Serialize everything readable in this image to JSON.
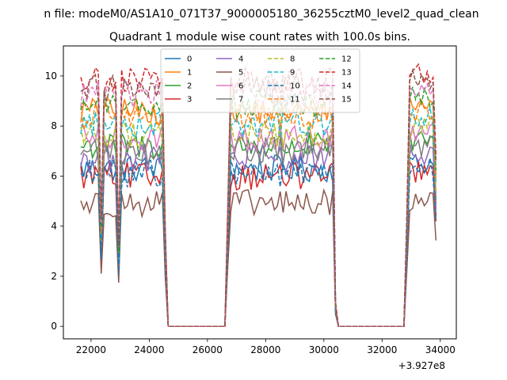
{
  "chart_data": {
    "type": "line",
    "suptitle": "n file: modeM0/AS1A10_071T37_9000005180_36255cztM0_level2_quad_clean",
    "title": "Quadrant 1 module wise count rates with 100.0s bins.",
    "xlabel": "",
    "ylabel": "",
    "x_offset_label": "+3.927e8",
    "xlim": [
      21050,
      34550
    ],
    "ylim": [
      -0.5,
      11.2
    ],
    "xticks": [
      22000,
      24000,
      26000,
      28000,
      30000,
      32000,
      34000
    ],
    "xtick_labels": [
      "22000",
      "24000",
      "26000",
      "28000",
      "30000",
      "32000",
      "34000"
    ],
    "yticks": [
      0,
      2,
      4,
      6,
      8,
      10
    ],
    "ytick_labels": [
      "0",
      "2",
      "4",
      "6",
      "8",
      "10"
    ],
    "legend_position": "top-center",
    "legend_ncol": 4,
    "grid": false,
    "segment1": {
      "start": 21650,
      "end": 24500
    },
    "segment2": {
      "start": 26700,
      "end": 30350
    },
    "segment3": {
      "start": 32850,
      "end": 33900
    },
    "series": [
      {
        "name": "0",
        "color": "#1f77b4",
        "dash": "solid",
        "level": 6.3
      },
      {
        "name": "1",
        "color": "#ff7f0e",
        "dash": "solid",
        "level": 8.6
      },
      {
        "name": "2",
        "color": "#2ca02c",
        "dash": "solid",
        "level": 7.2
      },
      {
        "name": "3",
        "color": "#d62728",
        "dash": "solid",
        "level": 6.0
      },
      {
        "name": "4",
        "color": "#9467bd",
        "dash": "solid",
        "level": 6.7
      },
      {
        "name": "5",
        "color": "#8c564b",
        "dash": "solid",
        "level": 4.9
      },
      {
        "name": "6",
        "color": "#e377c2",
        "dash": "solid",
        "level": 7.5
      },
      {
        "name": "7",
        "color": "#7f7f7f",
        "dash": "solid",
        "level": 7.0
      },
      {
        "name": "8",
        "color": "#bcbd22",
        "dash": "dashed",
        "level": 7.7
      },
      {
        "name": "9",
        "color": "#17becf",
        "dash": "dashed",
        "level": 8.1
      },
      {
        "name": "10",
        "color": "#1f77b4",
        "dash": "dashed",
        "level": 6.1
      },
      {
        "name": "11",
        "color": "#ff7f0e",
        "dash": "dashed",
        "level": 8.4
      },
      {
        "name": "12",
        "color": "#2ca02c",
        "dash": "dashed",
        "level": 8.9
      },
      {
        "name": "13",
        "color": "#d62728",
        "dash": "dashed",
        "level": 9.8
      },
      {
        "name": "14",
        "color": "#e377c2",
        "dash": "dashed",
        "level": 9.3
      },
      {
        "name": "15",
        "color": "#8c564b",
        "dash": "dashed",
        "level": 9.5
      }
    ]
  }
}
